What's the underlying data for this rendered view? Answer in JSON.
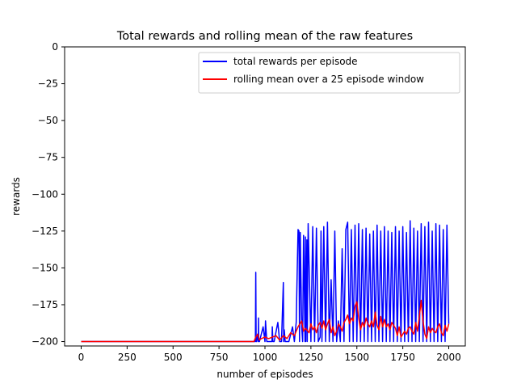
{
  "chart_data": {
    "type": "line",
    "title": "Total rewards and rolling mean of the raw features",
    "xlabel": "number of episodes",
    "ylabel": "rewards",
    "xlim": [
      -90,
      2090
    ],
    "ylim": [
      -203,
      0
    ],
    "xticks": [
      0,
      250,
      500,
      750,
      1000,
      1250,
      1500,
      1750,
      2000
    ],
    "yticks": [
      0,
      -25,
      -50,
      -75,
      -100,
      -125,
      -150,
      -175,
      -200
    ],
    "grid": false,
    "legend_position": "top-right",
    "series": [
      {
        "name": "total rewards per episode",
        "color": "#0000ff",
        "style": "dense-oscillating",
        "x": [
          0,
          100,
          200,
          300,
          400,
          500,
          600,
          700,
          800,
          900,
          940,
          948,
          950,
          952,
          955,
          960,
          964,
          965,
          966,
          970,
          990,
          1000,
          1003,
          1010,
          1030,
          1038,
          1040,
          1043,
          1050,
          1070,
          1080,
          1090,
          1100,
          1102,
          1105,
          1110,
          1130,
          1150,
          1160,
          1170,
          1180,
          1185,
          1188,
          1192,
          1200,
          1205,
          1210,
          1218,
          1220,
          1222,
          1228,
          1230,
          1235,
          1250,
          1260,
          1270,
          1280,
          1290,
          1300,
          1305,
          1310,
          1320,
          1330,
          1340,
          1350,
          1360,
          1370,
          1380,
          1390,
          1400,
          1410,
          1420,
          1430,
          1440,
          1450,
          1460,
          1470,
          1480,
          1490,
          1500,
          1510,
          1520,
          1530,
          1540,
          1550,
          1560,
          1570,
          1580,
          1590,
          1600,
          1610,
          1620,
          1630,
          1640,
          1650,
          1660,
          1670,
          1680,
          1690,
          1700,
          1710,
          1720,
          1730,
          1740,
          1750,
          1760,
          1770,
          1780,
          1790,
          1800,
          1810,
          1820,
          1830,
          1840,
          1850,
          1860,
          1870,
          1880,
          1890,
          1900,
          1910,
          1920,
          1930,
          1940,
          1950,
          1960,
          1970,
          1980,
          1990,
          2000
        ],
        "y": [
          -200,
          -200,
          -200,
          -200,
          -200,
          -200,
          -200,
          -200,
          -200,
          -200,
          -200,
          -200,
          -153,
          -200,
          -200,
          -195,
          -200,
          -184,
          -200,
          -200,
          -190,
          -200,
          -186,
          -200,
          -200,
          -200,
          -190,
          -200,
          -200,
          -187,
          -200,
          -200,
          -160,
          -200,
          -192,
          -200,
          -200,
          -190,
          -200,
          -187,
          -124,
          -125,
          -200,
          -126,
          -190,
          -200,
          -128,
          -200,
          -129,
          -200,
          -131,
          -200,
          -120,
          -200,
          -122,
          -200,
          -123,
          -200,
          -197,
          -125,
          -200,
          -122,
          -200,
          -119,
          -200,
          -158,
          -200,
          -125,
          -200,
          -186,
          -200,
          -137,
          -200,
          -124,
          -119,
          -200,
          -124,
          -200,
          -121,
          -200,
          -120,
          -200,
          -124,
          -200,
          -123,
          -200,
          -127,
          -200,
          -125,
          -200,
          -121,
          -200,
          -125,
          -200,
          -122,
          -200,
          -125,
          -200,
          -126,
          -200,
          -122,
          -200,
          -125,
          -200,
          -122,
          -200,
          -126,
          -200,
          -118,
          -200,
          -123,
          -200,
          -125,
          -200,
          -120,
          -200,
          -122,
          -200,
          -119,
          -200,
          -125,
          -200,
          -120,
          -200,
          -121,
          -200,
          -124,
          -200,
          -121,
          -188
        ]
      },
      {
        "name": "rolling mean over a 25 episode window",
        "color": "#ff0000",
        "x": [
          0,
          100,
          200,
          300,
          400,
          500,
          600,
          700,
          800,
          900,
          940,
          950,
          960,
          970,
          980,
          1000,
          1020,
          1040,
          1060,
          1080,
          1100,
          1120,
          1140,
          1160,
          1180,
          1200,
          1210,
          1220,
          1240,
          1250,
          1260,
          1270,
          1280,
          1290,
          1300,
          1310,
          1320,
          1330,
          1340,
          1350,
          1360,
          1370,
          1380,
          1390,
          1400,
          1410,
          1420,
          1430,
          1440,
          1450,
          1460,
          1470,
          1480,
          1490,
          1500,
          1510,
          1520,
          1530,
          1540,
          1550,
          1560,
          1570,
          1580,
          1590,
          1600,
          1610,
          1620,
          1630,
          1640,
          1650,
          1660,
          1670,
          1680,
          1690,
          1700,
          1710,
          1720,
          1730,
          1740,
          1750,
          1760,
          1770,
          1780,
          1790,
          1800,
          1810,
          1820,
          1830,
          1840,
          1850,
          1860,
          1870,
          1880,
          1890,
          1900,
          1910,
          1920,
          1930,
          1940,
          1950,
          1960,
          1970,
          1980,
          1990,
          2000
        ],
        "y": [
          -200,
          -200,
          -200,
          -200,
          -200,
          -200,
          -200,
          -200,
          -200,
          -200,
          -200,
          -197,
          -195,
          -199,
          -198,
          -197,
          -198,
          -197,
          -196,
          -199,
          -196,
          -198,
          -194,
          -196,
          -190,
          -186,
          -193,
          -191,
          -194,
          -188,
          -192,
          -190,
          -194,
          -189,
          -187,
          -191,
          -186,
          -192,
          -188,
          -185,
          -194,
          -190,
          -196,
          -193,
          -188,
          -190,
          -193,
          -187,
          -185,
          -182,
          -188,
          -184,
          -186,
          -176,
          -173,
          -184,
          -192,
          -187,
          -190,
          -184,
          -188,
          -190,
          -186,
          -190,
          -180,
          -189,
          -192,
          -183,
          -190,
          -185,
          -190,
          -188,
          -192,
          -187,
          -189,
          -191,
          -196,
          -190,
          -197,
          -195,
          -193,
          -195,
          -191,
          -190,
          -193,
          -195,
          -187,
          -193,
          -183,
          -172,
          -186,
          -195,
          -198,
          -190,
          -194,
          -191,
          -193,
          -194,
          -190,
          -188,
          -194,
          -196,
          -189,
          -193,
          -188
        ]
      }
    ]
  }
}
